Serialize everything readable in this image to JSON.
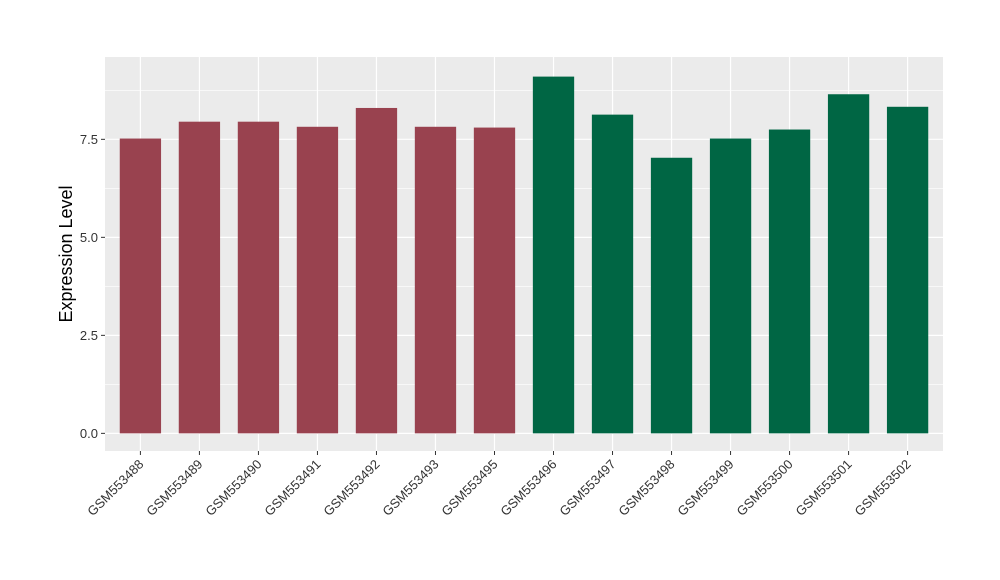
{
  "chart_data": {
    "type": "bar",
    "title": "",
    "xlabel": "",
    "ylabel": "Expression Level",
    "ylim": [
      -0.45,
      9.6
    ],
    "yticks": [
      "0.0",
      "2.5",
      "5.0",
      "7.5"
    ],
    "yticks_values": [
      0,
      2.5,
      5.0,
      7.5
    ],
    "grid": true,
    "panel_background": "#ebebeb",
    "gridline_color": "#ffffff",
    "categories": [
      "GSM553488",
      "GSM553489",
      "GSM553490",
      "GSM553491",
      "GSM553492",
      "GSM553493",
      "GSM553495",
      "GSM553496",
      "GSM553497",
      "GSM553498",
      "GSM553499",
      "GSM553500",
      "GSM553501",
      "GSM553502"
    ],
    "values": [
      7.52,
      7.95,
      7.95,
      7.82,
      8.3,
      7.82,
      7.8,
      9.1,
      8.13,
      7.03,
      7.52,
      7.75,
      8.65,
      8.33
    ],
    "bar_colors": [
      "#99424f",
      "#99424f",
      "#99424f",
      "#99424f",
      "#99424f",
      "#99424f",
      "#99424f",
      "#006644",
      "#006644",
      "#006644",
      "#006644",
      "#006644",
      "#006644",
      "#006644"
    ]
  }
}
